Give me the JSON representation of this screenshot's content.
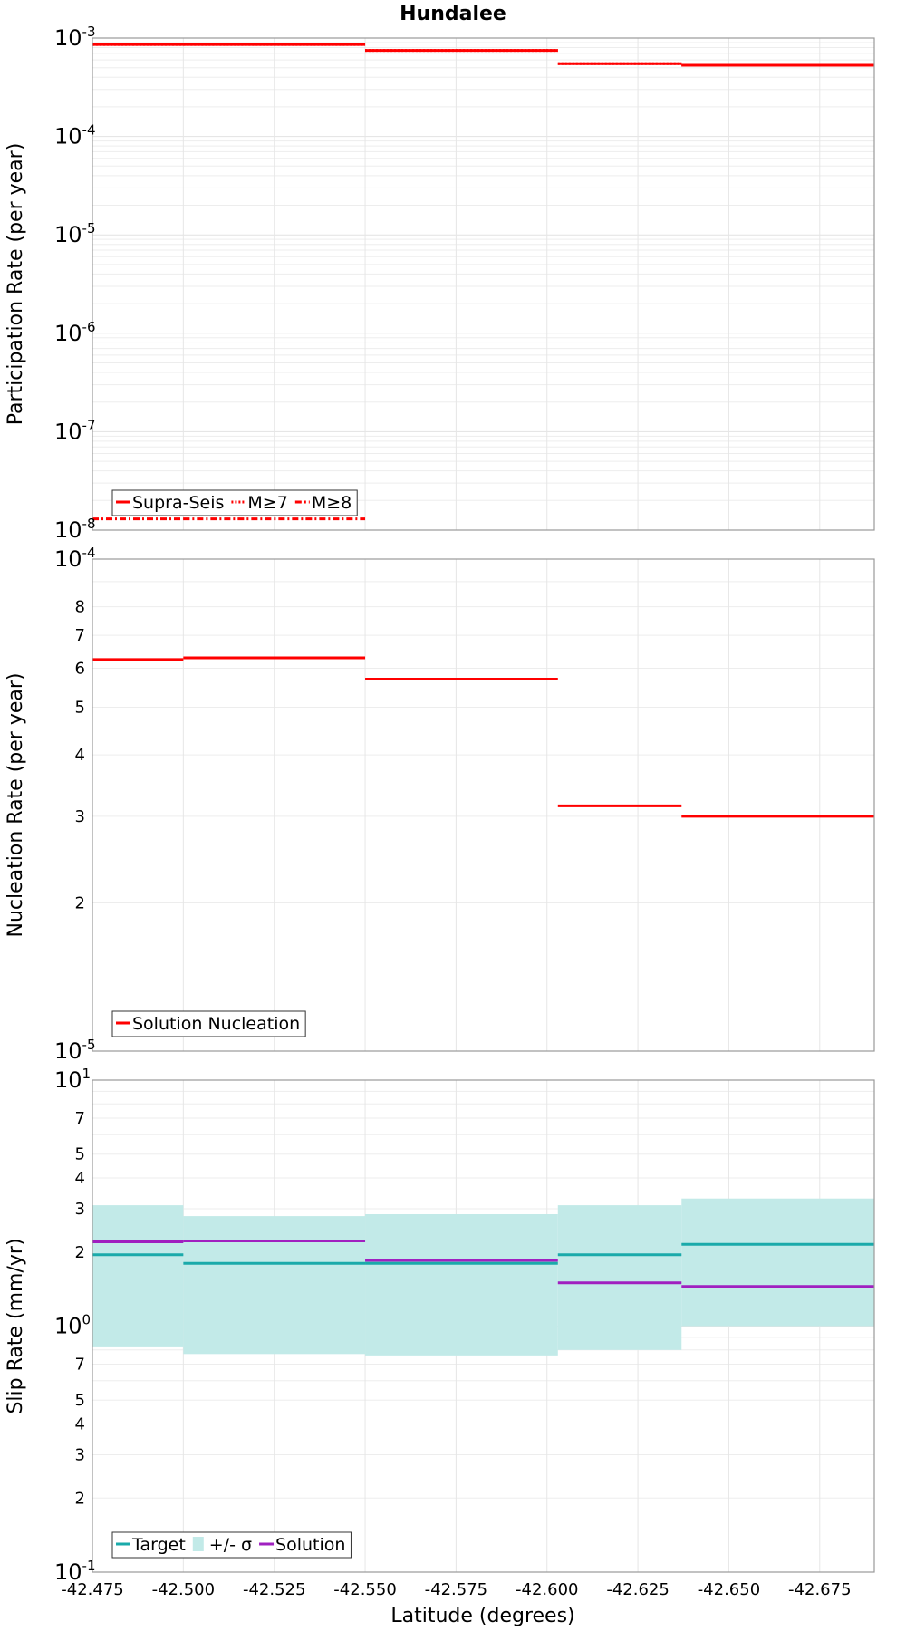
{
  "chart_data": [
    {
      "type": "line",
      "title": "Hundalee",
      "ylabel": "Participation Rate (per year)",
      "yscale": "log",
      "ylim": [
        1e-08,
        0.001
      ],
      "xlim": [
        -42.475,
        -42.69
      ],
      "grid": true,
      "legend_position": "bottom-left",
      "ytick_labels": [
        {
          "base": "10",
          "exp": "-8"
        },
        {
          "base": "10",
          "exp": "-7"
        },
        {
          "base": "10",
          "exp": "-6"
        },
        {
          "base": "10",
          "exp": "-5"
        },
        {
          "base": "10",
          "exp": "-4"
        },
        {
          "base": "10",
          "exp": "-3"
        }
      ],
      "series": [
        {
          "name": "Supra-Seis",
          "style": "solid",
          "color": "#ff0000",
          "segments": [
            [
              -42.475,
              -42.5,
              0.00086
            ],
            [
              -42.5,
              -42.55,
              0.00086
            ],
            [
              -42.55,
              -42.603,
              0.00075
            ],
            [
              -42.603,
              -42.637,
              0.00055
            ],
            [
              -42.637,
              -42.69,
              0.00053
            ]
          ]
        },
        {
          "name": "M≥7",
          "style": "dotted",
          "color": "#ff0000",
          "segments": [
            [
              -42.475,
              -42.5,
              0.00086
            ],
            [
              -42.5,
              -42.55,
              0.00086
            ],
            [
              -42.55,
              -42.603,
              0.00075
            ],
            [
              -42.603,
              -42.637,
              0.00055
            ],
            [
              -42.637,
              -42.69,
              0.00053
            ]
          ]
        },
        {
          "name": "M≥8",
          "style": "dashdot",
          "color": "#ff0000",
          "segments": [
            [
              -42.475,
              -42.5,
              1.3e-08
            ],
            [
              -42.5,
              -42.55,
              1.3e-08
            ]
          ]
        }
      ]
    },
    {
      "type": "line",
      "ylabel": "Nucleation Rate (per year)",
      "yscale": "log",
      "ylim": [
        1e-05,
        0.0001
      ],
      "xlim": [
        -42.475,
        -42.69
      ],
      "grid": true,
      "legend_position": "bottom-left",
      "ytick_labels": [
        {
          "v": 2e-05,
          "t": "2"
        },
        {
          "v": 3e-05,
          "t": "3"
        },
        {
          "v": 4e-05,
          "t": "4"
        },
        {
          "v": 5e-05,
          "t": "5"
        },
        {
          "v": 6e-05,
          "t": "6"
        },
        {
          "v": 7e-05,
          "t": "7"
        },
        {
          "v": 8e-05,
          "t": "8"
        }
      ],
      "ytick_big": [
        {
          "base": "10",
          "exp": "-5"
        },
        {
          "base": "10",
          "exp": "-4"
        }
      ],
      "series": [
        {
          "name": "Solution Nucleation",
          "style": "solid",
          "color": "#ff0000",
          "segments": [
            [
              -42.475,
              -42.5,
              6.25e-05
            ],
            [
              -42.5,
              -42.55,
              6.3e-05
            ],
            [
              -42.55,
              -42.603,
              5.7e-05
            ],
            [
              -42.603,
              -42.637,
              3.15e-05
            ],
            [
              -42.637,
              -42.69,
              3e-05
            ]
          ]
        }
      ]
    },
    {
      "type": "line",
      "ylabel": "Slip Rate (mm/yr)",
      "xlabel": "Latitude (degrees)",
      "yscale": "log",
      "ylim": [
        0.1,
        10
      ],
      "xlim": [
        -42.475,
        -42.69
      ],
      "grid": true,
      "legend_position": "bottom-left",
      "xticks": [
        "-42.475",
        "-42.500",
        "-42.525",
        "-42.550",
        "-42.575",
        "-42.600",
        "-42.625",
        "-42.650",
        "-42.675"
      ],
      "ytick_labels": [
        {
          "v": 0.2,
          "t": "2"
        },
        {
          "v": 0.3,
          "t": "3"
        },
        {
          "v": 0.4,
          "t": "4"
        },
        {
          "v": 0.5,
          "t": "5"
        },
        {
          "v": 0.7,
          "t": "7"
        },
        {
          "v": 2,
          "t": "2"
        },
        {
          "v": 3,
          "t": "3"
        },
        {
          "v": 4,
          "t": "4"
        },
        {
          "v": 5,
          "t": "5"
        },
        {
          "v": 7,
          "t": "7"
        }
      ],
      "ytick_big": [
        {
          "base": "10",
          "exp": "-1"
        },
        {
          "base": "10",
          "exp": "0"
        },
        {
          "base": "10",
          "exp": "1"
        }
      ],
      "band": {
        "name": "+/- σ",
        "color": "#c2eae8",
        "segments": [
          [
            -42.475,
            -42.5,
            0.82,
            3.1
          ],
          [
            -42.5,
            -42.55,
            0.77,
            2.8
          ],
          [
            -42.55,
            -42.603,
            0.76,
            2.85
          ],
          [
            -42.603,
            -42.637,
            0.8,
            3.1
          ],
          [
            -42.637,
            -42.69,
            1.0,
            3.3
          ]
        ]
      },
      "series": [
        {
          "name": "Target",
          "style": "solid",
          "color": "#1aaaaa",
          "segments": [
            [
              -42.475,
              -42.5,
              1.95
            ],
            [
              -42.5,
              -42.55,
              1.8
            ],
            [
              -42.55,
              -42.603,
              1.8
            ],
            [
              -42.603,
              -42.637,
              1.95
            ],
            [
              -42.637,
              -42.69,
              2.15
            ]
          ]
        },
        {
          "name": "Solution",
          "style": "solid",
          "color": "#a020c0",
          "segments": [
            [
              -42.475,
              -42.5,
              2.2
            ],
            [
              -42.5,
              -42.55,
              2.22
            ],
            [
              -42.55,
              -42.603,
              1.85
            ],
            [
              -42.603,
              -42.637,
              1.5
            ],
            [
              -42.637,
              -42.69,
              1.45
            ]
          ]
        }
      ]
    }
  ]
}
